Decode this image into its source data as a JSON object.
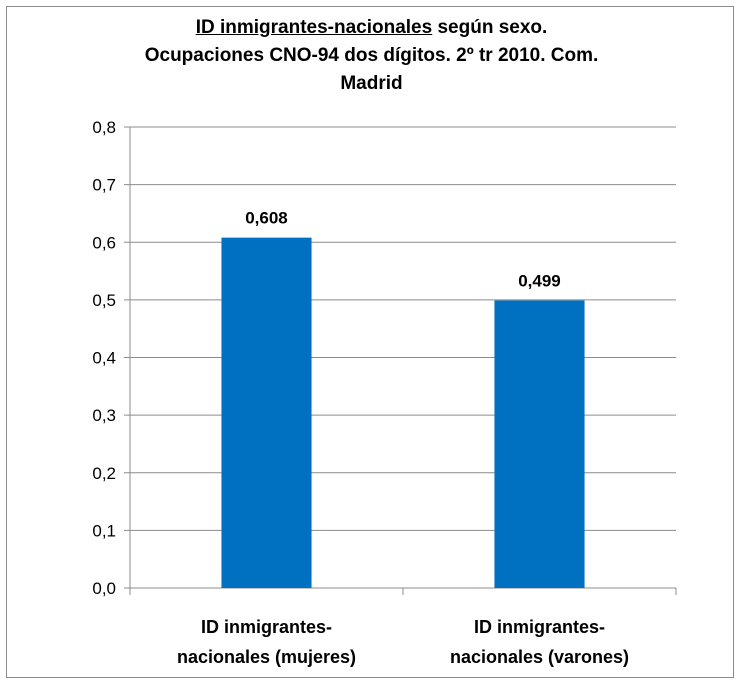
{
  "chart_data": {
    "type": "bar",
    "title_part1": "ID inmigrantes-nacionales",
    "title_part2": " según sexo.",
    "title_line2": "Ocupaciones CNO-94 dos dígitos. 2º tr 2010. Com.",
    "title_line3": "Madrid",
    "categories": [
      [
        "ID inmigrantes-",
        "nacionales (mujeres)"
      ],
      [
        "ID inmigrantes-",
        "nacionales (varones)"
      ]
    ],
    "values": [
      0.608,
      0.499
    ],
    "data_labels": [
      "0,608",
      "0,499"
    ],
    "yticks": [
      0.0,
      0.1,
      0.2,
      0.3,
      0.4,
      0.5,
      0.6,
      0.7,
      0.8
    ],
    "ytick_labels": [
      "0,0",
      "0,1",
      "0,2",
      "0,3",
      "0,4",
      "0,5",
      "0,6",
      "0,7",
      "0,8"
    ],
    "ylim": [
      0,
      0.8
    ],
    "grid": true,
    "bar_color": "#0070c0",
    "grid_color": "#8c8c8c"
  }
}
